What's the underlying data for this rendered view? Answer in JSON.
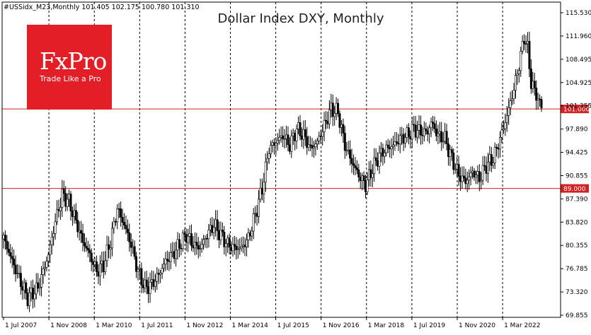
{
  "header": {
    "symbol_line": "#USSidx_M23,Monthly   101.405 102.175 100.780 101.310"
  },
  "logo": {
    "brand": "FxPro",
    "tagline": "Trade Like a Pro",
    "color": "#e41e26"
  },
  "chart_data": {
    "type": "candlestick",
    "title": "Dollar Index DXY, Monthly",
    "y_ticks": [
      "115.530",
      "111.960",
      "108.495",
      "104.925",
      "101.355",
      "97.890",
      "94.425",
      "90.855",
      "87.390",
      "83.820",
      "80.355",
      "76.785",
      "73.320",
      "69.855"
    ],
    "x_ticks": [
      "1 Jul 2007",
      "1 Nov 2008",
      "1 Mar 2010",
      "1 Jul 2011",
      "1 Nov 2012",
      "1 Mar 2014",
      "1 Jul 2015",
      "1 Nov 2016",
      "1 Mar 2018",
      "1 Jul 2019",
      "1 Nov 2020",
      "1 Mar 2022"
    ],
    "ylim": [
      69.855,
      116.5
    ],
    "grid": "vertical dashed",
    "horizontal_levels": [
      {
        "label": "101.000",
        "value": 101.0,
        "color": "#d42020"
      },
      {
        "label": "89.000",
        "value": 89.0,
        "color": "#d42020"
      }
    ],
    "bull_color": "#ffffff",
    "bear_color": "#000000",
    "keypoints": [
      [
        0,
        81.5
      ],
      [
        8,
        76.0
      ],
      [
        14,
        72.5
      ],
      [
        20,
        74.0
      ],
      [
        26,
        79.0
      ],
      [
        30,
        84.0
      ],
      [
        34,
        88.0
      ],
      [
        38,
        87.0
      ],
      [
        42,
        84.0
      ],
      [
        46,
        81.0
      ],
      [
        50,
        79.0
      ],
      [
        54,
        76.5
      ],
      [
        58,
        77.5
      ],
      [
        62,
        81.0
      ],
      [
        66,
        86.0
      ],
      [
        70,
        83.5
      ],
      [
        74,
        80.5
      ],
      [
        78,
        76.5
      ],
      [
        82,
        74.0
      ],
      [
        86,
        74.5
      ],
      [
        90,
        76.0
      ],
      [
        94,
        78.0
      ],
      [
        98,
        79.0
      ],
      [
        102,
        80.5
      ],
      [
        106,
        82.0
      ],
      [
        110,
        80.5
      ],
      [
        114,
        80.0
      ],
      [
        118,
        82.0
      ],
      [
        122,
        83.5
      ],
      [
        126,
        82.0
      ],
      [
        130,
        80.5
      ],
      [
        134,
        80.0
      ],
      [
        138,
        80.0
      ],
      [
        142,
        81.5
      ],
      [
        146,
        85.0
      ],
      [
        150,
        89.0
      ],
      [
        154,
        95.0
      ],
      [
        158,
        96.0
      ],
      [
        162,
        97.0
      ],
      [
        166,
        95.5
      ],
      [
        170,
        98.0
      ],
      [
        174,
        97.0
      ],
      [
        178,
        95.0
      ],
      [
        182,
        96.0
      ],
      [
        186,
        98.5
      ],
      [
        190,
        101.0
      ],
      [
        194,
        100.5
      ],
      [
        198,
        95.5
      ],
      [
        202,
        93.0
      ],
      [
        206,
        91.0
      ],
      [
        210,
        89.5
      ],
      [
        214,
        92.0
      ],
      [
        218,
        94.0
      ],
      [
        222,
        95.0
      ],
      [
        226,
        95.5
      ],
      [
        230,
        96.5
      ],
      [
        234,
        97.0
      ],
      [
        238,
        98.0
      ],
      [
        242,
        97.5
      ],
      [
        246,
        97.5
      ],
      [
        248,
        99.0
      ],
      [
        252,
        97.0
      ],
      [
        256,
        96.5
      ],
      [
        260,
        93.5
      ],
      [
        264,
        91.0
      ],
      [
        268,
        90.0
      ],
      [
        272,
        91.5
      ],
      [
        276,
        90.5
      ],
      [
        280,
        92.5
      ],
      [
        284,
        93.5
      ],
      [
        288,
        96.5
      ],
      [
        292,
        100.0
      ],
      [
        296,
        104.0
      ],
      [
        300,
        109.0
      ],
      [
        302,
        112.0
      ],
      [
        304,
        110.0
      ],
      [
        306,
        105.0
      ],
      [
        310,
        102.5
      ],
      [
        312,
        101.3
      ]
    ]
  }
}
